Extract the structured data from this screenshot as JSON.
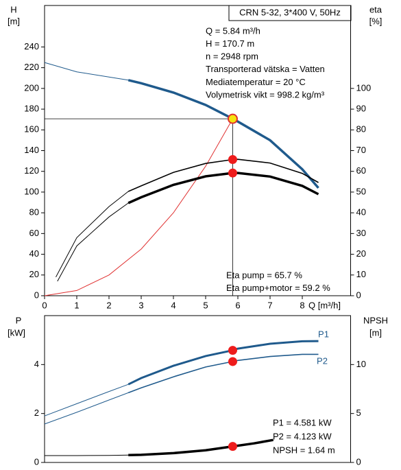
{
  "chart_data": [
    {
      "type": "line",
      "title": "CRN 5-32, 3*400 V, 50Hz",
      "info": [
        "Q = 5.84 m³/h",
        "H = 170.7 m",
        "n = 2948 rpm",
        "Transporterad vätska = Vatten",
        "Mediatemperatur = 20 °C",
        "Volymetrisk vikt = 998.2 kg/m³"
      ],
      "notes": [
        "Eta pump = 65.7 %",
        "Eta pump+motor = 59.2 %"
      ],
      "y_label": [
        "H",
        "[m]"
      ],
      "y2_label": [
        "eta",
        "[%]"
      ],
      "x_label": "Q [m³/h]",
      "xlim": [
        0,
        9.5
      ],
      "xticks": [
        0,
        1,
        2,
        3,
        4,
        5,
        6,
        7,
        8
      ],
      "ylim": [
        0,
        280
      ],
      "yticks": [
        0,
        20,
        40,
        60,
        80,
        100,
        120,
        140,
        160,
        180,
        200,
        220,
        240
      ],
      "y2lim": [
        0,
        140
      ],
      "y2ticks": [
        0,
        10,
        20,
        30,
        40,
        50,
        60,
        70,
        80,
        90,
        100
      ],
      "guides": [
        {
          "x": 5.84,
          "value": 170.7
        }
      ],
      "series": [
        {
          "color": "#1f5a8c",
          "width": 1,
          "axis": "y",
          "x": [
            0,
            1,
            2,
            2.6
          ],
          "values": [
            225,
            216,
            211,
            208
          ]
        },
        {
          "color": "#1f5a8c",
          "width": 3.5,
          "axis": "y",
          "x": [
            2.6,
            3,
            4,
            5,
            5.84,
            6,
            7,
            8,
            8.5
          ],
          "values": [
            208,
            205,
            196,
            184,
            170.7,
            168,
            150,
            122,
            104
          ]
        },
        {
          "color": "#e03030",
          "width": 1,
          "axis": "y",
          "x": [
            0,
            1,
            2,
            3,
            4,
            5,
            5.84
          ],
          "values": [
            0,
            5,
            20,
            45,
            80,
            125,
            170.7
          ]
        },
        {
          "color": "#000000",
          "width": 1,
          "axis": "y2",
          "x": [
            0.35,
            1,
            2,
            2.6
          ],
          "values": [
            9,
            28,
            43,
            50.3
          ]
        },
        {
          "color": "#000000",
          "width": 1.6,
          "axis": "y2",
          "x": [
            2.6,
            3,
            4,
            5,
            5.84,
            6,
            7,
            8,
            8.5
          ],
          "values": [
            50.3,
            53,
            59.5,
            63.8,
            65.7,
            65.8,
            64,
            59,
            54.6
          ]
        },
        {
          "color": "#000000",
          "width": 1,
          "axis": "y2",
          "x": [
            0.4,
            1,
            2,
            2.6
          ],
          "values": [
            7,
            24,
            38,
            44.7
          ]
        },
        {
          "color": "#000000",
          "width": 3.5,
          "axis": "y2",
          "x": [
            2.6,
            3,
            4,
            5,
            5.84,
            6,
            7,
            8,
            8.5
          ],
          "values": [
            44.7,
            47.5,
            53.5,
            57.6,
            59.2,
            59.2,
            57.5,
            53,
            49
          ]
        }
      ],
      "markers": [
        {
          "x": 5.84,
          "value": 170.7,
          "axis": "y",
          "color": "#f5e20f"
        },
        {
          "x": 5.84,
          "value": 65.7,
          "axis": "y2",
          "color": "#ee1c1c"
        },
        {
          "x": 5.84,
          "value": 59.2,
          "axis": "y2",
          "color": "#ee1c1c"
        }
      ]
    },
    {
      "type": "line",
      "notes": [
        "P1 = 4.581 kW",
        "P2 = 4.123 kW",
        "NPSH = 1.64 m"
      ],
      "curve_labels": [
        "P1",
        "P2"
      ],
      "y_label": [
        "P",
        "[kW]"
      ],
      "y2_label": [
        "NPSH",
        "[m]"
      ],
      "xlim": [
        0,
        9.5
      ],
      "ylim": [
        0,
        6
      ],
      "yticks": [
        0,
        2,
        4
      ],
      "y2lim": [
        0,
        15
      ],
      "y2ticks": [
        0,
        5,
        10
      ],
      "series": [
        {
          "color": "#1f5a8c",
          "width": 1,
          "axis": "y",
          "x": [
            0,
            1,
            2,
            2.6
          ],
          "values": [
            1.9,
            2.4,
            2.9,
            3.19
          ]
        },
        {
          "color": "#1f5a8c",
          "width": 3,
          "axis": "y",
          "x": [
            2.6,
            3,
            4,
            5,
            5.84,
            6,
            7,
            8,
            8.5
          ],
          "values": [
            3.19,
            3.45,
            3.95,
            4.35,
            4.581,
            4.65,
            4.85,
            4.95,
            4.96
          ]
        },
        {
          "color": "#1f5a8c",
          "width": 1,
          "axis": "y",
          "x": [
            0,
            1,
            2,
            2.6
          ],
          "values": [
            1.57,
            2.05,
            2.55,
            2.85
          ]
        },
        {
          "color": "#1f5a8c",
          "width": 1.6,
          "axis": "y",
          "x": [
            2.6,
            3,
            4,
            5,
            5.84,
            6,
            7,
            8,
            8.5
          ],
          "values": [
            2.85,
            3.05,
            3.5,
            3.9,
            4.123,
            4.17,
            4.33,
            4.42,
            4.42
          ]
        },
        {
          "color": "#000000",
          "width": 1,
          "axis": "y2",
          "x": [
            0,
            1,
            2,
            2.6
          ],
          "values": [
            0.7,
            0.7,
            0.72,
            0.75
          ]
        },
        {
          "color": "#000000",
          "width": 3.5,
          "axis": "y2",
          "x": [
            2.6,
            3,
            4,
            5,
            5.84,
            6.5,
            7.1
          ],
          "values": [
            0.75,
            0.78,
            0.95,
            1.25,
            1.64,
            1.95,
            2.3
          ]
        }
      ],
      "markers": [
        {
          "x": 5.84,
          "value": 4.581,
          "axis": "y",
          "color": "#ee1c1c"
        },
        {
          "x": 5.84,
          "value": 4.123,
          "axis": "y",
          "color": "#ee1c1c"
        },
        {
          "x": 5.84,
          "value": 1.64,
          "axis": "y2",
          "color": "#ee1c1c"
        }
      ]
    }
  ]
}
